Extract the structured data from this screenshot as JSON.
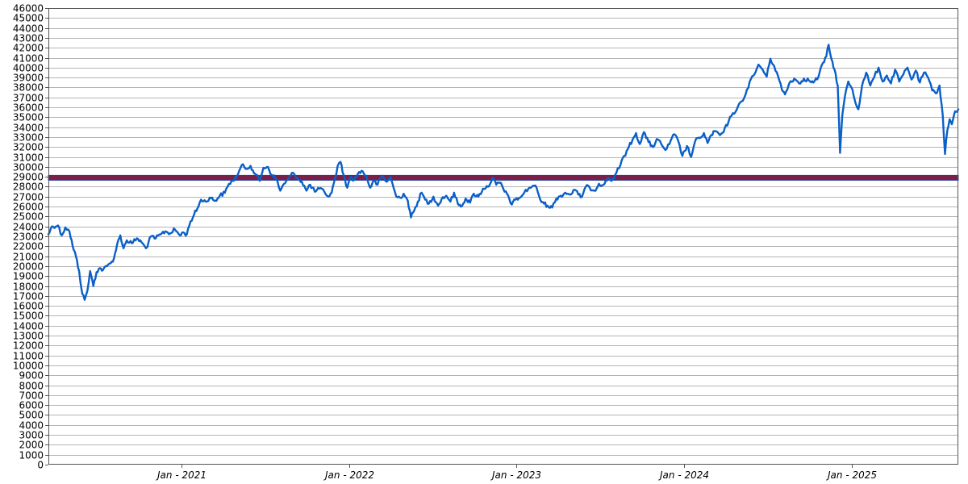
{
  "chart_data": {
    "type": "line",
    "title": "",
    "xlabel": "",
    "ylabel": "",
    "grid": true,
    "xlim": [
      "2020-03-16",
      "2025-08-22"
    ],
    "ylim": [
      0,
      46000
    ],
    "y_ticks": [
      0,
      1000,
      2000,
      3000,
      4000,
      5000,
      6000,
      7000,
      8000,
      9000,
      10000,
      11000,
      12000,
      13000,
      14000,
      15000,
      16000,
      17000,
      18000,
      19000,
      20000,
      21000,
      22000,
      23000,
      24000,
      25000,
      26000,
      27000,
      28000,
      29000,
      30000,
      31000,
      32000,
      33000,
      34000,
      35000,
      36000,
      37000,
      38000,
      39000,
      40000,
      41000,
      42000,
      43000,
      44000,
      45000,
      46000
    ],
    "x_ticks": [
      {
        "date": "2021-01-01",
        "label": "Jan - 2021"
      },
      {
        "date": "2022-01-01",
        "label": "Jan - 2022"
      },
      {
        "date": "2023-01-01",
        "label": "Jan - 2023"
      },
      {
        "date": "2024-01-01",
        "label": "Jan - 2024"
      },
      {
        "date": "2025-01-01",
        "label": "Jan - 2025"
      }
    ],
    "reference_line": {
      "value": 28900,
      "color": "#7a1f4a"
    },
    "series": [
      {
        "color": "#0a5fc8",
        "points": [
          [
            "2020-03-16",
            23200
          ],
          [
            "2020-03-24",
            24000
          ],
          [
            "2020-04-06",
            24100
          ],
          [
            "2020-04-14",
            23100
          ],
          [
            "2020-04-22",
            23900
          ],
          [
            "2020-05-01",
            23500
          ],
          [
            "2020-05-08",
            22000
          ],
          [
            "2020-05-15",
            21000
          ],
          [
            "2020-05-22",
            19500
          ],
          [
            "2020-05-29",
            17200
          ],
          [
            "2020-06-03",
            16600
          ],
          [
            "2020-06-09",
            17500
          ],
          [
            "2020-06-15",
            19500
          ],
          [
            "2020-06-22",
            18000
          ],
          [
            "2020-06-29",
            19400
          ],
          [
            "2020-07-06",
            19800
          ],
          [
            "2020-07-13",
            19600
          ],
          [
            "2020-07-22",
            20000
          ],
          [
            "2020-07-30",
            20300
          ],
          [
            "2020-08-06",
            20800
          ],
          [
            "2020-08-13",
            22200
          ],
          [
            "2020-08-20",
            23100
          ],
          [
            "2020-08-27",
            21800
          ],
          [
            "2020-09-03",
            22600
          ],
          [
            "2020-09-14",
            22300
          ],
          [
            "2020-09-25",
            22800
          ],
          [
            "2020-10-05",
            22400
          ],
          [
            "2020-10-15",
            21800
          ],
          [
            "2020-10-26",
            23000
          ],
          [
            "2020-11-05",
            22800
          ],
          [
            "2020-11-16",
            23200
          ],
          [
            "2020-11-26",
            23500
          ],
          [
            "2020-12-07",
            23300
          ],
          [
            "2020-12-17",
            23700
          ],
          [
            "2020-12-28",
            23100
          ],
          [
            "2021-01-04",
            23400
          ],
          [
            "2021-01-12",
            23200
          ],
          [
            "2021-01-20",
            24500
          ],
          [
            "2021-01-28",
            25200
          ],
          [
            "2021-02-04",
            25800
          ],
          [
            "2021-02-12",
            26700
          ],
          [
            "2021-02-22",
            26500
          ],
          [
            "2021-03-03",
            26900
          ],
          [
            "2021-03-15",
            26600
          ],
          [
            "2021-03-25",
            27100
          ],
          [
            "2021-04-05",
            27400
          ],
          [
            "2021-04-14",
            28300
          ],
          [
            "2021-04-22",
            28600
          ],
          [
            "2021-05-03",
            29200
          ],
          [
            "2021-05-12",
            30200
          ],
          [
            "2021-05-20",
            29800
          ],
          [
            "2021-05-31",
            30100
          ],
          [
            "2021-06-10",
            29300
          ],
          [
            "2021-06-20",
            28600
          ],
          [
            "2021-06-28",
            29900
          ],
          [
            "2021-07-08",
            30000
          ],
          [
            "2021-07-16",
            29200
          ],
          [
            "2021-07-26",
            28800
          ],
          [
            "2021-08-04",
            27600
          ],
          [
            "2021-08-12",
            28300
          ],
          [
            "2021-08-22",
            28800
          ],
          [
            "2021-09-01",
            29400
          ],
          [
            "2021-09-10",
            28900
          ],
          [
            "2021-09-20",
            28500
          ],
          [
            "2021-09-30",
            27600
          ],
          [
            "2021-10-08",
            28200
          ],
          [
            "2021-10-18",
            27500
          ],
          [
            "2021-10-28",
            27800
          ],
          [
            "2021-11-08",
            27500
          ],
          [
            "2021-11-17",
            27000
          ],
          [
            "2021-11-24",
            27400
          ],
          [
            "2021-12-01",
            28800
          ],
          [
            "2021-12-07",
            30100
          ],
          [
            "2021-12-13",
            30500
          ],
          [
            "2021-12-20",
            29200
          ],
          [
            "2021-12-28",
            27900
          ],
          [
            "2022-01-05",
            29000
          ],
          [
            "2022-01-12",
            28700
          ],
          [
            "2022-01-20",
            29300
          ],
          [
            "2022-01-28",
            29600
          ],
          [
            "2022-02-07",
            29100
          ],
          [
            "2022-02-16",
            27900
          ],
          [
            "2022-02-24",
            28600
          ],
          [
            "2022-03-04",
            28200
          ],
          [
            "2022-03-14",
            29100
          ],
          [
            "2022-03-24",
            28500
          ],
          [
            "2022-04-01",
            29000
          ],
          [
            "2022-04-08",
            27900
          ],
          [
            "2022-04-14",
            27000
          ],
          [
            "2022-04-22",
            26900
          ],
          [
            "2022-04-30",
            27300
          ],
          [
            "2022-05-09",
            26600
          ],
          [
            "2022-05-16",
            24900
          ],
          [
            "2022-05-23",
            25600
          ],
          [
            "2022-05-31",
            26500
          ],
          [
            "2022-06-08",
            27400
          ],
          [
            "2022-06-16",
            26700
          ],
          [
            "2022-06-24",
            26300
          ],
          [
            "2022-07-04",
            27000
          ],
          [
            "2022-07-14",
            26100
          ],
          [
            "2022-07-22",
            26800
          ],
          [
            "2022-08-01",
            27100
          ],
          [
            "2022-08-10",
            26500
          ],
          [
            "2022-08-18",
            27400
          ],
          [
            "2022-08-26",
            26300
          ],
          [
            "2022-09-02",
            26000
          ],
          [
            "2022-09-12",
            26800
          ],
          [
            "2022-09-22",
            26400
          ],
          [
            "2022-09-30",
            27300
          ],
          [
            "2022-10-10",
            27000
          ],
          [
            "2022-10-20",
            27800
          ],
          [
            "2022-10-31",
            28000
          ],
          [
            "2022-11-10",
            28900
          ],
          [
            "2022-11-18",
            28200
          ],
          [
            "2022-11-28",
            28400
          ],
          [
            "2022-12-06",
            27500
          ],
          [
            "2022-12-14",
            27100
          ],
          [
            "2022-12-22",
            26200
          ],
          [
            "2022-12-30",
            26700
          ],
          [
            "2023-01-09",
            26900
          ],
          [
            "2023-01-18",
            27400
          ],
          [
            "2023-01-27",
            27800
          ],
          [
            "2023-02-06",
            28100
          ],
          [
            "2023-02-14",
            27900
          ],
          [
            "2023-02-22",
            26700
          ],
          [
            "2023-03-02",
            26300
          ],
          [
            "2023-03-10",
            26100
          ],
          [
            "2023-03-20",
            25900
          ],
          [
            "2023-03-29",
            26800
          ],
          [
            "2023-04-08",
            27100
          ],
          [
            "2023-04-18",
            27400
          ],
          [
            "2023-04-28",
            27200
          ],
          [
            "2023-05-08",
            27700
          ],
          [
            "2023-05-16",
            27200
          ],
          [
            "2023-05-24",
            27000
          ],
          [
            "2023-06-01",
            28000
          ],
          [
            "2023-06-10",
            27900
          ],
          [
            "2023-06-20",
            27600
          ],
          [
            "2023-06-30",
            28300
          ],
          [
            "2023-07-10",
            28200
          ],
          [
            "2023-07-20",
            28900
          ],
          [
            "2023-07-28",
            28600
          ],
          [
            "2023-08-07",
            29400
          ],
          [
            "2023-08-16",
            30200
          ],
          [
            "2023-08-24",
            31100
          ],
          [
            "2023-09-01",
            31800
          ],
          [
            "2023-09-11",
            32700
          ],
          [
            "2023-09-19",
            33400
          ],
          [
            "2023-09-27",
            32300
          ],
          [
            "2023-10-06",
            33500
          ],
          [
            "2023-10-16",
            32500
          ],
          [
            "2023-10-26",
            32000
          ],
          [
            "2023-11-03",
            32800
          ],
          [
            "2023-11-13",
            32300
          ],
          [
            "2023-11-22",
            31700
          ],
          [
            "2023-12-01",
            32300
          ],
          [
            "2023-12-11",
            33300
          ],
          [
            "2023-12-20",
            32600
          ],
          [
            "2023-12-29",
            31100
          ],
          [
            "2024-01-08",
            32100
          ],
          [
            "2024-01-17",
            31000
          ],
          [
            "2024-01-26",
            32600
          ],
          [
            "2024-02-05",
            32900
          ],
          [
            "2024-02-14",
            33400
          ],
          [
            "2024-02-22",
            32400
          ],
          [
            "2024-03-01",
            33200
          ],
          [
            "2024-03-11",
            33600
          ],
          [
            "2024-03-20",
            33200
          ],
          [
            "2024-03-28",
            33500
          ],
          [
            "2024-04-08",
            34600
          ],
          [
            "2024-04-17",
            35400
          ],
          [
            "2024-04-26",
            35800
          ],
          [
            "2024-05-06",
            36600
          ],
          [
            "2024-05-15",
            37300
          ],
          [
            "2024-05-24",
            38600
          ],
          [
            "2024-06-03",
            39300
          ],
          [
            "2024-06-12",
            40300
          ],
          [
            "2024-06-21",
            39800
          ],
          [
            "2024-06-30",
            39100
          ],
          [
            "2024-07-08",
            40900
          ],
          [
            "2024-07-16",
            40200
          ],
          [
            "2024-07-25",
            39100
          ],
          [
            "2024-08-02",
            37800
          ],
          [
            "2024-08-09",
            37300
          ],
          [
            "2024-08-19",
            38500
          ],
          [
            "2024-08-29",
            38900
          ],
          [
            "2024-09-09",
            38400
          ],
          [
            "2024-09-19",
            38900
          ],
          [
            "2024-09-30",
            38700
          ],
          [
            "2024-10-10",
            38500
          ],
          [
            "2024-10-21",
            39100
          ],
          [
            "2024-10-31",
            40500
          ],
          [
            "2024-11-07",
            41100
          ],
          [
            "2024-11-12",
            42300
          ],
          [
            "2024-11-18",
            40900
          ],
          [
            "2024-11-25",
            39800
          ],
          [
            "2024-12-02",
            38200
          ],
          [
            "2024-12-07",
            31400
          ],
          [
            "2024-12-12",
            35200
          ],
          [
            "2024-12-18",
            37200
          ],
          [
            "2024-12-25",
            38600
          ],
          [
            "2025-01-03",
            37800
          ],
          [
            "2025-01-10",
            36400
          ],
          [
            "2025-01-16",
            35800
          ],
          [
            "2025-01-24",
            38200
          ],
          [
            "2025-02-02",
            39500
          ],
          [
            "2025-02-11",
            38200
          ],
          [
            "2025-02-20",
            39100
          ],
          [
            "2025-03-01",
            40000
          ],
          [
            "2025-03-10",
            38600
          ],
          [
            "2025-03-19",
            39200
          ],
          [
            "2025-03-28",
            38400
          ],
          [
            "2025-04-06",
            39800
          ],
          [
            "2025-04-15",
            38600
          ],
          [
            "2025-04-24",
            39300
          ],
          [
            "2025-05-03",
            40000
          ],
          [
            "2025-05-12",
            38800
          ],
          [
            "2025-05-21",
            39700
          ],
          [
            "2025-05-30",
            38500
          ],
          [
            "2025-06-08",
            39500
          ],
          [
            "2025-06-17",
            39000
          ],
          [
            "2025-06-26",
            37700
          ],
          [
            "2025-07-04",
            37400
          ],
          [
            "2025-07-12",
            38200
          ],
          [
            "2025-07-19",
            35200
          ],
          [
            "2025-07-24",
            31300
          ],
          [
            "2025-07-29",
            33700
          ],
          [
            "2025-08-03",
            34800
          ],
          [
            "2025-08-08",
            34300
          ],
          [
            "2025-08-15",
            35600
          ],
          [
            "2025-08-22",
            35800
          ]
        ]
      }
    ]
  }
}
